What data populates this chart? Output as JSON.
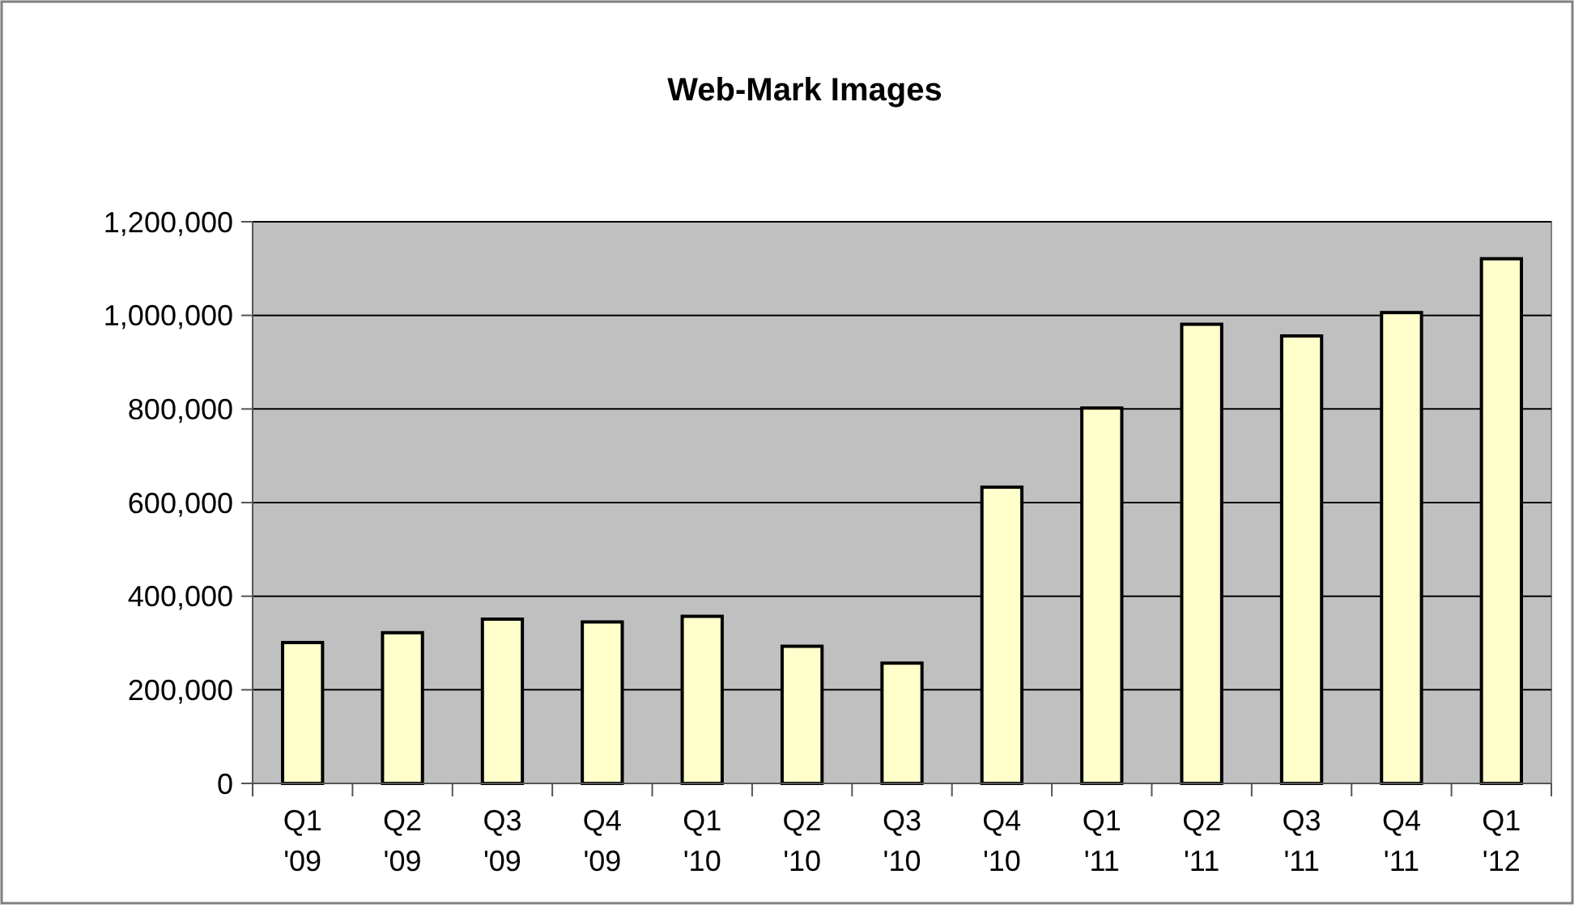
{
  "chart_data": {
    "type": "bar",
    "title": "Web-Mark Images",
    "categories": [
      "Q1 '09",
      "Q2 '09",
      "Q3 '09",
      "Q4 '09",
      "Q1 '10",
      "Q2 '10",
      "Q3 '10",
      "Q4 '10",
      "Q1 '11",
      "Q2 '11",
      "Q3 '11",
      "Q4 '11",
      "Q1 '12"
    ],
    "values": [
      301000,
      322000,
      351000,
      345000,
      357000,
      293000,
      257000,
      633000,
      802000,
      981000,
      956000,
      1006000,
      1121000
    ],
    "color": "#ffffcc",
    "ylim": [
      0,
      1200000
    ],
    "yticks": [
      {
        "value": 0,
        "label": "0"
      },
      {
        "value": 200000,
        "label": "200,000"
      },
      {
        "value": 400000,
        "label": "400,000"
      },
      {
        "value": 600000,
        "label": "600,000"
      },
      {
        "value": 800000,
        "label": "800,000"
      },
      {
        "value": 1000000,
        "label": "1,000,000"
      },
      {
        "value": 1200000,
        "label": "1,200,000"
      }
    ],
    "grid": "y"
  }
}
